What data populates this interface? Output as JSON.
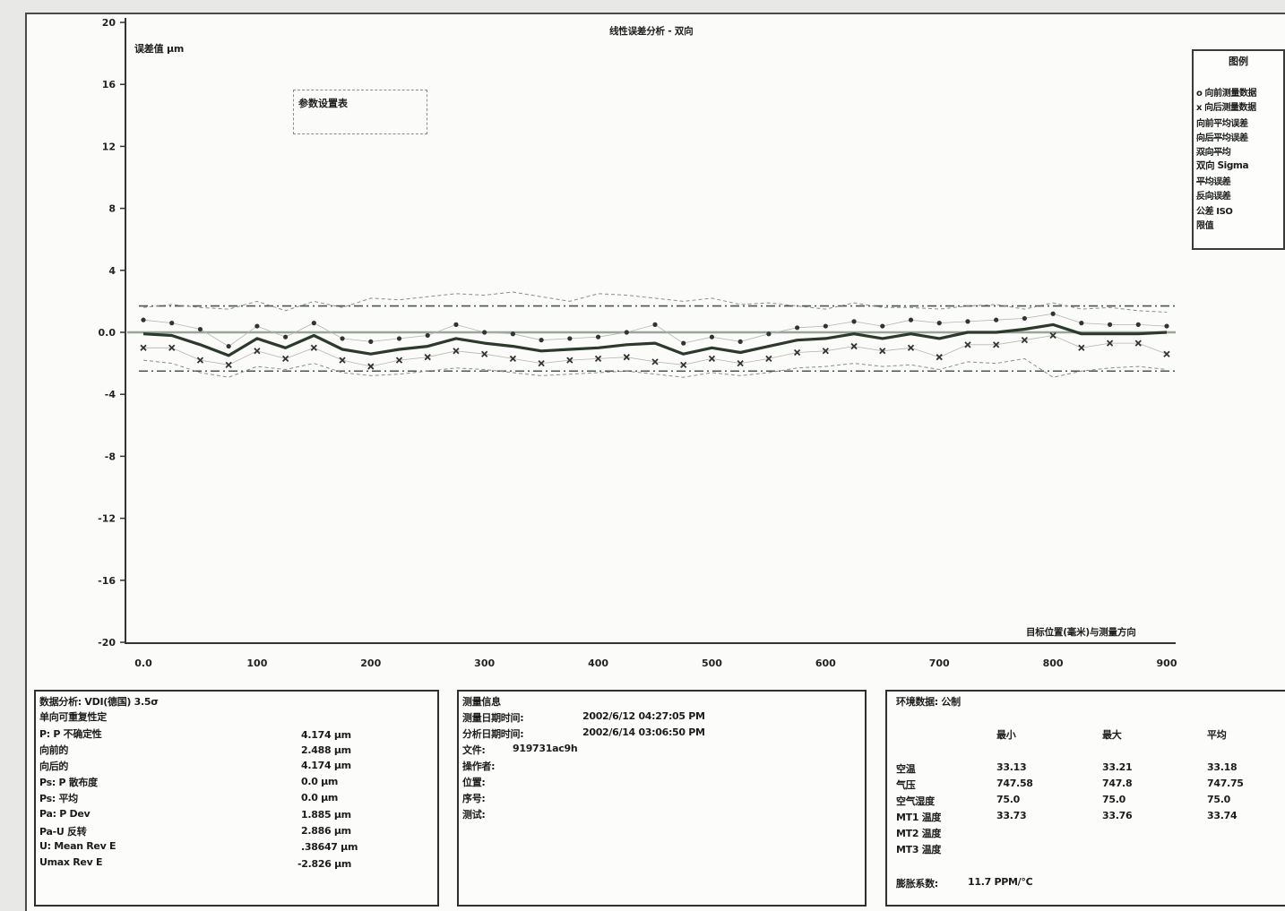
{
  "chart_data": {
    "type": "line",
    "title": "线性误差分析 - 双向",
    "ylabel": "误差值 μm",
    "xlabel": "目标位置(毫米)与测量方向",
    "xlim": [
      0,
      900
    ],
    "ylim": [
      -20,
      20
    ],
    "xticks": [
      0,
      100,
      200,
      300,
      400,
      500,
      600,
      700,
      800,
      900
    ],
    "xtick_labels": [
      "0.0",
      "100",
      "200",
      "300",
      "400",
      "500",
      "600",
      "700",
      "800",
      "900"
    ],
    "yticks": [
      20,
      16,
      12,
      8,
      4,
      0,
      -4,
      -8,
      -12,
      -16,
      -20
    ],
    "ytick_labels": [
      "20",
      "16",
      "12",
      "8",
      "4",
      "0.0",
      "-4",
      "-8",
      "-12",
      "-16",
      "-20"
    ],
    "grid": false,
    "x": [
      0,
      25,
      50,
      75,
      100,
      125,
      150,
      175,
      200,
      225,
      250,
      275,
      300,
      325,
      350,
      375,
      400,
      425,
      450,
      475,
      500,
      525,
      550,
      575,
      600,
      625,
      650,
      675,
      700,
      725,
      750,
      775,
      800,
      825,
      850,
      875,
      900
    ],
    "series": [
      {
        "name": "向前测量数据",
        "marker": "o",
        "values": [
          0.8,
          0.6,
          0.2,
          -0.9,
          0.4,
          -0.3,
          0.6,
          -0.4,
          -0.6,
          -0.4,
          -0.2,
          0.5,
          0.0,
          -0.1,
          -0.5,
          -0.4,
          -0.3,
          0.0,
          0.5,
          -0.7,
          -0.3,
          -0.6,
          -0.1,
          0.3,
          0.4,
          0.7,
          0.4,
          0.8,
          0.6,
          0.7,
          0.8,
          0.9,
          1.2,
          0.6,
          0.5,
          0.5,
          0.4
        ]
      },
      {
        "name": "向后测量数据",
        "marker": "x",
        "values": [
          -1.0,
          -1.0,
          -1.8,
          -2.1,
          -1.2,
          -1.7,
          -1.0,
          -1.8,
          -2.2,
          -1.8,
          -1.6,
          -1.2,
          -1.4,
          -1.7,
          -2.0,
          -1.8,
          -1.7,
          -1.6,
          -1.9,
          -2.1,
          -1.7,
          -2.0,
          -1.7,
          -1.3,
          -1.2,
          -0.9,
          -1.2,
          -1.0,
          -1.6,
          -0.8,
          -0.8,
          -0.5,
          -0.2,
          -1.0,
          -0.7,
          -0.7,
          -1.4
        ]
      },
      {
        "name": "双向平均",
        "values": [
          -0.1,
          -0.2,
          -0.8,
          -1.5,
          -0.4,
          -1.0,
          -0.2,
          -1.1,
          -1.4,
          -1.1,
          -0.9,
          -0.4,
          -0.7,
          -0.9,
          -1.2,
          -1.1,
          -1.0,
          -0.8,
          -0.7,
          -1.4,
          -1.0,
          -1.3,
          -0.9,
          -0.5,
          -0.4,
          -0.1,
          -0.4,
          -0.1,
          -0.4,
          0.0,
          0.0,
          0.2,
          0.5,
          -0.1,
          -0.1,
          -0.1,
          0.0
        ]
      },
      {
        "name": "双向 Sigma",
        "style": "dashed",
        "upper": [
          1.6,
          1.8,
          1.6,
          1.5,
          2.0,
          1.4,
          2.0,
          1.6,
          2.2,
          2.1,
          2.3,
          2.5,
          2.4,
          2.6,
          2.3,
          2.0,
          2.5,
          2.4,
          2.2,
          2.0,
          2.2,
          1.8,
          1.9,
          1.7,
          1.5,
          1.9,
          1.6,
          1.6,
          1.5,
          1.7,
          1.8,
          1.5,
          1.9,
          1.5,
          1.6,
          1.4,
          1.3
        ],
        "lower": [
          -1.8,
          -2.0,
          -2.6,
          -2.9,
          -2.2,
          -2.4,
          -2.0,
          -2.6,
          -2.8,
          -2.7,
          -2.5,
          -2.3,
          -2.4,
          -2.6,
          -2.8,
          -2.7,
          -2.6,
          -2.5,
          -2.7,
          -2.9,
          -2.6,
          -2.8,
          -2.6,
          -2.3,
          -2.2,
          -2.0,
          -2.2,
          -2.1,
          -2.4,
          -1.9,
          -2.0,
          -1.7,
          -2.9,
          -2.5,
          -2.3,
          -2.2,
          -2.4
        ]
      }
    ],
    "limits": {
      "name": "限值",
      "style": "dash-dot",
      "upper": 1.7,
      "lower": -2.5
    },
    "zero_line": 0,
    "parameter_box": {
      "label": "参数设置表"
    },
    "legend": {
      "title": "图例",
      "position": "top-right",
      "items": [
        {
          "label": "o 向前测量数据",
          "style": "marker"
        },
        {
          "label": "x 向后测量数据",
          "style": "marker"
        },
        {
          "label": "向前平均误差",
          "style": "text"
        },
        {
          "label": "向后平均误差",
          "style": "line"
        },
        {
          "label": "双向平均",
          "style": "line"
        },
        {
          "label": "双向 Sigma",
          "style": "strong"
        },
        {
          "label": "平均误差",
          "style": "line"
        },
        {
          "label": "反向误差",
          "style": "line"
        },
        {
          "label": "公差 ISO",
          "style": "text"
        },
        {
          "label": "限值",
          "style": "text"
        }
      ]
    },
    "colors": {
      "mean": "#2b3a2b",
      "zero": "#9aa59a",
      "limit": "#4a5a4a",
      "band": "#8c8c8c",
      "points": "#333333",
      "axis": "#333333"
    }
  },
  "panels": {
    "analysis": {
      "title": "数据分析: VDI(德国) 3.5σ",
      "subtitle": "单向可重复性定",
      "rows": [
        {
          "label": "P: P 不确定性",
          "value": "4.174 μm"
        },
        {
          "label": "向前的",
          "value": "2.488 μm"
        },
        {
          "label": "向后的",
          "value": "4.174 μm"
        },
        {
          "label": "Ps: P 散布度",
          "value": "0.0 μm"
        },
        {
          "label": "Ps: 平均",
          "value": "0.0 μm"
        },
        {
          "label": "Pa: P Dev",
          "value": "1.885 μm"
        },
        {
          "label": "Pa-U 反转",
          "value": "2.886 μm"
        },
        {
          "label": "U: Mean Rev E",
          "value": ".38647 μm"
        },
        {
          "label": "Umax Rev E",
          "value": "-2.826 μm"
        }
      ]
    },
    "info": {
      "title": "测量信息",
      "rows": [
        {
          "label": "测量日期时间:",
          "value": "2002/6/12 04:27:05 PM"
        },
        {
          "label": "分析日期时间:",
          "value": "2002/6/14 03:06:50 PM"
        },
        {
          "label": "文件:",
          "value": "919731ac9h"
        },
        {
          "label": "操作者:"
        },
        {
          "label": "位置:"
        },
        {
          "label": "序号:"
        },
        {
          "label": "测试:"
        }
      ]
    },
    "environment": {
      "title": "环境数据: 公制",
      "headers": [
        "最小",
        "最大",
        "平均"
      ],
      "rows": [
        {
          "label": "空温",
          "values": [
            "33.13",
            "33.21",
            "33.18"
          ]
        },
        {
          "label": "气压",
          "values": [
            "747.58",
            "747.8",
            "747.75"
          ]
        },
        {
          "label": "空气湿度",
          "values": [
            "75.0",
            "75.0",
            "75.0"
          ]
        },
        {
          "label": "MT1 温度",
          "values": [
            "33.73",
            "33.76",
            "33.74"
          ]
        },
        {
          "label": "MT2 温度"
        },
        {
          "label": "MT3 温度"
        }
      ],
      "footer_label": "膨胀系数:",
      "footer_value": "11.7 PPM/℃"
    }
  }
}
